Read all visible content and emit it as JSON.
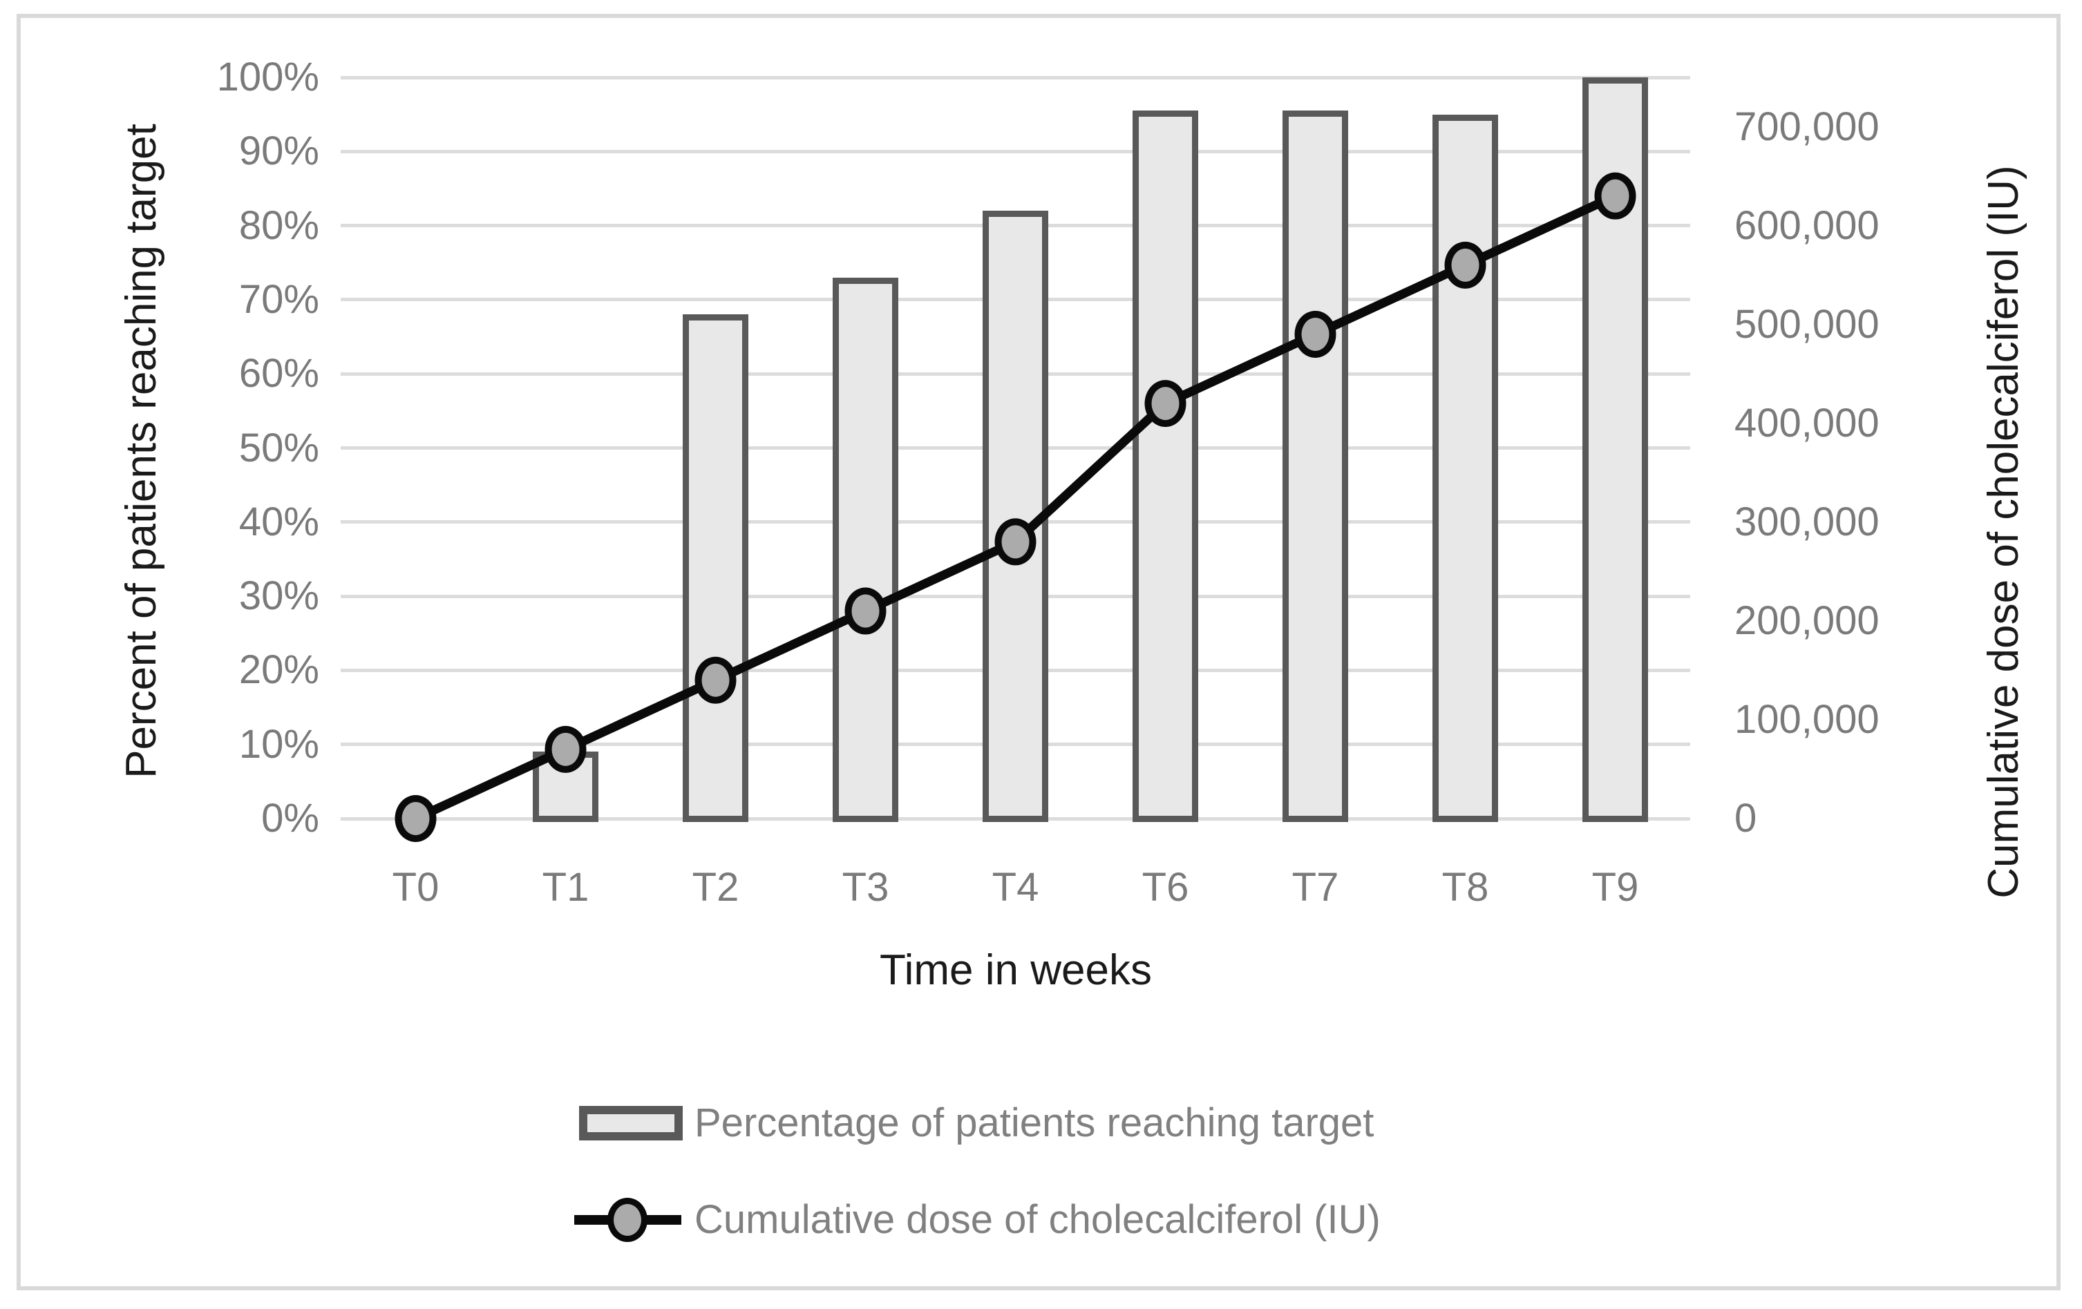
{
  "figure": {
    "background": "#ffffff",
    "border_color": "#d9d9d9"
  },
  "chart_data": {
    "type": "combo (bar + line, dual axis)",
    "categories": [
      "T0",
      "T1",
      "T2",
      "T3",
      "T4",
      "T6",
      "T7",
      "T8",
      "T9"
    ],
    "series": [
      {
        "name": "Percentage of patients reaching target",
        "type": "bar",
        "axis": "left",
        "unit": "%",
        "values": [
          0,
          9,
          68,
          73,
          82,
          95.5,
          95.5,
          95,
          100
        ]
      },
      {
        "name": "Cumulative dose of cholecalciferol (IU)",
        "type": "line",
        "axis": "right",
        "unit": "IU",
        "values": [
          0,
          70000,
          140000,
          210000,
          280000,
          420000,
          490000,
          560000,
          630000
        ]
      }
    ],
    "x_axis": {
      "title": "Time in weeks"
    },
    "left_axis": {
      "title": "Percent of patients reaching target",
      "min": 0,
      "max": 100,
      "tick_step": 10,
      "tick_labels": [
        "0%",
        "10%",
        "20%",
        "30%",
        "40%",
        "50%",
        "60%",
        "70%",
        "80%",
        "90%",
        "100%"
      ]
    },
    "right_axis": {
      "title": "Cumulative dose of cholecalciferol (IU)",
      "min": 0,
      "max": 750000,
      "tick_step": 100000,
      "tick_values": [
        0,
        100000,
        200000,
        300000,
        400000,
        500000,
        600000,
        700000
      ],
      "tick_labels": [
        "0",
        "100,000",
        "200,000",
        "300,000",
        "400,000",
        "500,000",
        "600,000",
        "700,000"
      ]
    },
    "grid": true,
    "legend_position": "bottom",
    "legend": [
      {
        "swatch": "bar",
        "label": "Percentage of patients reaching target"
      },
      {
        "swatch": "line-marker",
        "label": "Cumulative dose of cholecalciferol (IU)"
      }
    ],
    "colors": {
      "bar_fill": "#e8e8e8",
      "bar_border": "#595959",
      "line": "#0a0a0a",
      "marker_fill": "#ababab",
      "marker_ring": "#0a0a0a",
      "gridline": "#dcdcdc",
      "tick_text": "#7a7a7a",
      "legend_text": "#808080",
      "title_text": "#1a1a1a"
    }
  }
}
